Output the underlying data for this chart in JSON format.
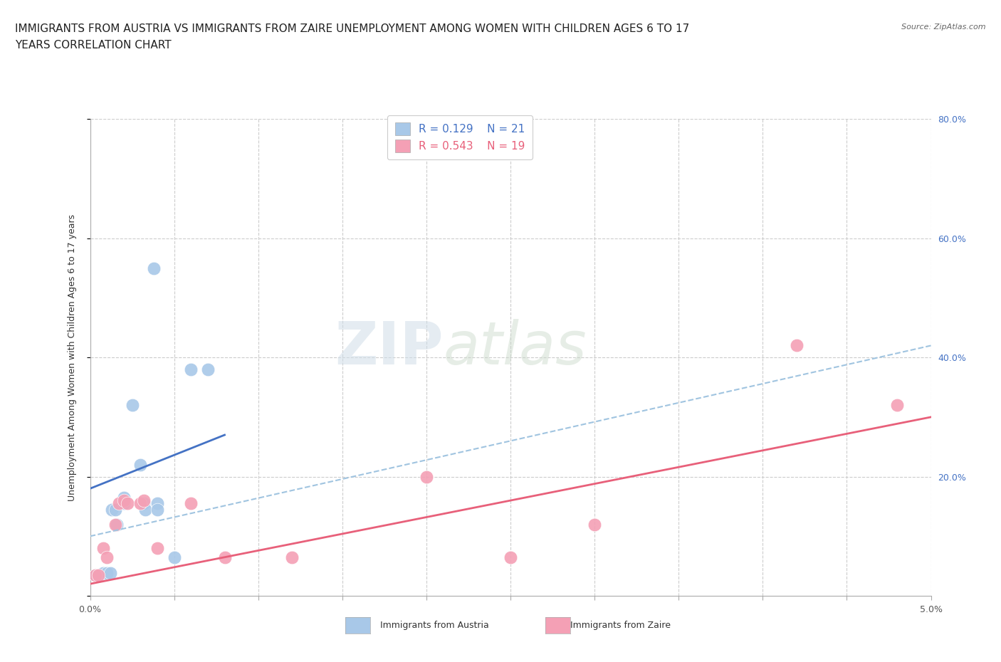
{
  "title_line1": "IMMIGRANTS FROM AUSTRIA VS IMMIGRANTS FROM ZAIRE UNEMPLOYMENT AMONG WOMEN WITH CHILDREN AGES 6 TO 17",
  "title_line2": "YEARS CORRELATION CHART",
  "source": "Source: ZipAtlas.com",
  "ylabel": "Unemployment Among Women with Children Ages 6 to 17 years",
  "xlim": [
    0.0,
    0.05
  ],
  "ylim": [
    0.0,
    0.8
  ],
  "yticks": [
    0.0,
    0.2,
    0.4,
    0.6,
    0.8
  ],
  "ytick_labels": [
    "",
    "20.0%",
    "40.0%",
    "60.0%",
    "80.0%"
  ],
  "watermark_left": "ZIP",
  "watermark_right": "atlas",
  "austria_R": 0.129,
  "austria_N": 21,
  "zaire_R": 0.543,
  "zaire_N": 19,
  "austria_color": "#a8c8e8",
  "zaire_color": "#f4a0b5",
  "austria_line_color": "#4472c4",
  "zaire_line_color": "#e8607a",
  "dashed_line_color": "#a0c4e0",
  "austria_scatter": [
    [
      0.0003,
      0.035
    ],
    [
      0.0005,
      0.035
    ],
    [
      0.0007,
      0.035
    ],
    [
      0.0008,
      0.038
    ],
    [
      0.001,
      0.038
    ],
    [
      0.0012,
      0.038
    ],
    [
      0.0013,
      0.145
    ],
    [
      0.0015,
      0.145
    ],
    [
      0.0016,
      0.12
    ],
    [
      0.002,
      0.165
    ],
    [
      0.002,
      0.155
    ],
    [
      0.0025,
      0.32
    ],
    [
      0.003,
      0.22
    ],
    [
      0.0032,
      0.155
    ],
    [
      0.0033,
      0.145
    ],
    [
      0.0038,
      0.55
    ],
    [
      0.004,
      0.155
    ],
    [
      0.004,
      0.145
    ],
    [
      0.005,
      0.065
    ],
    [
      0.006,
      0.38
    ],
    [
      0.007,
      0.38
    ]
  ],
  "zaire_scatter": [
    [
      0.0003,
      0.035
    ],
    [
      0.0005,
      0.035
    ],
    [
      0.0008,
      0.08
    ],
    [
      0.001,
      0.065
    ],
    [
      0.0015,
      0.12
    ],
    [
      0.0017,
      0.155
    ],
    [
      0.002,
      0.16
    ],
    [
      0.0022,
      0.155
    ],
    [
      0.003,
      0.155
    ],
    [
      0.0032,
      0.16
    ],
    [
      0.004,
      0.08
    ],
    [
      0.006,
      0.155
    ],
    [
      0.008,
      0.065
    ],
    [
      0.012,
      0.065
    ],
    [
      0.02,
      0.2
    ],
    [
      0.025,
      0.065
    ],
    [
      0.03,
      0.12
    ],
    [
      0.042,
      0.42
    ],
    [
      0.048,
      0.32
    ]
  ],
  "austria_trend_x": [
    0.0,
    0.008
  ],
  "austria_trend_y": [
    0.18,
    0.27
  ],
  "zaire_trend_x": [
    0.0,
    0.05
  ],
  "zaire_trend_y": [
    0.02,
    0.3
  ],
  "dashed_trend_x": [
    0.0,
    0.05
  ],
  "dashed_trend_y": [
    0.1,
    0.42
  ],
  "background_color": "#ffffff",
  "grid_color": "#cccccc",
  "title_fontsize": 11,
  "axis_label_fontsize": 9,
  "tick_label_fontsize": 9,
  "legend_fontsize": 11,
  "marker_size": 180
}
